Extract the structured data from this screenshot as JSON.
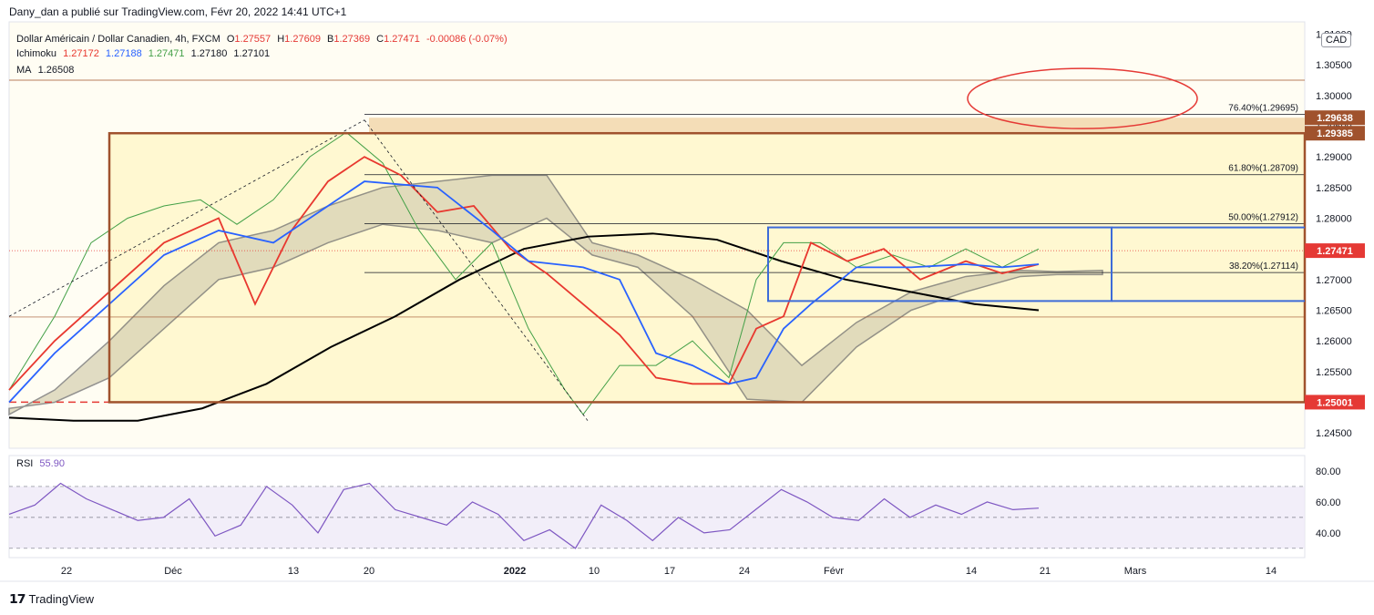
{
  "header": {
    "publish_line": "Dany_dan a publié sur TradingView.com, Févr 20, 2022 14:41 UTC+1"
  },
  "legend": {
    "symbol": "Dollar Américain / Dollar Canadien, 4h, FXCM",
    "o_label": "O",
    "o_value": "1.27557",
    "h_label": "H",
    "h_value": "1.27609",
    "b_label": "B",
    "b_value": "1.27369",
    "c_label": "C",
    "c_value": "1.27471",
    "change": "-0.00086 (-0.07%)",
    "ichimoku_label": "Ichimoku",
    "ichimoku_values": [
      "1.27172",
      "1.27188",
      "1.27471",
      "1.27180",
      "1.27101"
    ],
    "ma_label": "MA",
    "ma_value": "1.26508",
    "rsi_label": "RSI",
    "rsi_value": "55.90"
  },
  "currency": "CAD",
  "colors": {
    "tenkan": "#e8382f",
    "kijun": "#2962ff",
    "chikou": "#43a047",
    "ma": "#000000",
    "zone_fill": "#fff9d6",
    "box_border": "#a0522d",
    "blue_box": "#3d6bd8",
    "rsi": "#7e57c2",
    "price_red": "#e53935",
    "orange_tag": "#a0522d"
  },
  "chart_data": [
    {
      "type": "line",
      "title": "Dollar Américain / Dollar Canadien, 4h, FXCM",
      "ylim": [
        1.2425,
        1.312
      ],
      "y_ticks": [
        "1.24500",
        "1.25000",
        "1.25500",
        "1.26000",
        "1.26500",
        "1.27000",
        "1.27500",
        "1.28000",
        "1.28500",
        "1.29000",
        "1.29500",
        "1.30000",
        "1.30500",
        "1.31000"
      ],
      "x_ticks": [
        "22",
        "Déc",
        "13",
        "20",
        "2022",
        "10",
        "17",
        "24",
        "Févr",
        "14",
        "21",
        "Mars",
        "14"
      ],
      "price_labels": [
        {
          "value": 1.29638,
          "text": "1.29638",
          "style": "orange"
        },
        {
          "value": 1.29385,
          "text": "1.29385",
          "style": "orange"
        },
        {
          "value": 1.27471,
          "text": "1.27471",
          "style": "red"
        },
        {
          "value": 1.25001,
          "text": "1.25001",
          "style": "red"
        }
      ],
      "fib_levels": [
        {
          "label": "76.40%(1.29695)",
          "value": 1.29695
        },
        {
          "label": "61.80%(1.28709)",
          "value": 1.28709
        },
        {
          "label": "50.00%(1.27912)",
          "value": 1.27912
        },
        {
          "label": "38.20%(1.27114)",
          "value": 1.27114
        }
      ],
      "series": [
        {
          "name": "MA",
          "values": [
            1.2475,
            1.247,
            1.247,
            1.249,
            1.253,
            1.259,
            1.264,
            1.27,
            1.275,
            1.277,
            1.2775,
            1.2765,
            1.273,
            1.27,
            1.268,
            1.266,
            1.265
          ]
        }
      ]
    },
    {
      "type": "line",
      "title": "RSI",
      "ylim": [
        24,
        90
      ],
      "y_ticks": [
        "40.00",
        "60.00",
        "80.00"
      ],
      "levels": [
        70,
        50,
        30
      ],
      "series": [
        {
          "name": "RSI",
          "values": [
            52,
            58,
            72,
            62,
            55,
            48,
            50,
            62,
            38,
            45,
            70,
            58,
            40,
            68,
            72,
            55,
            50,
            45,
            60,
            52,
            35,
            42,
            30,
            58,
            48,
            35,
            50,
            40,
            42,
            55,
            68,
            60,
            50,
            48,
            62,
            50,
            58,
            52,
            60,
            55,
            56
          ]
        }
      ]
    }
  ]
}
